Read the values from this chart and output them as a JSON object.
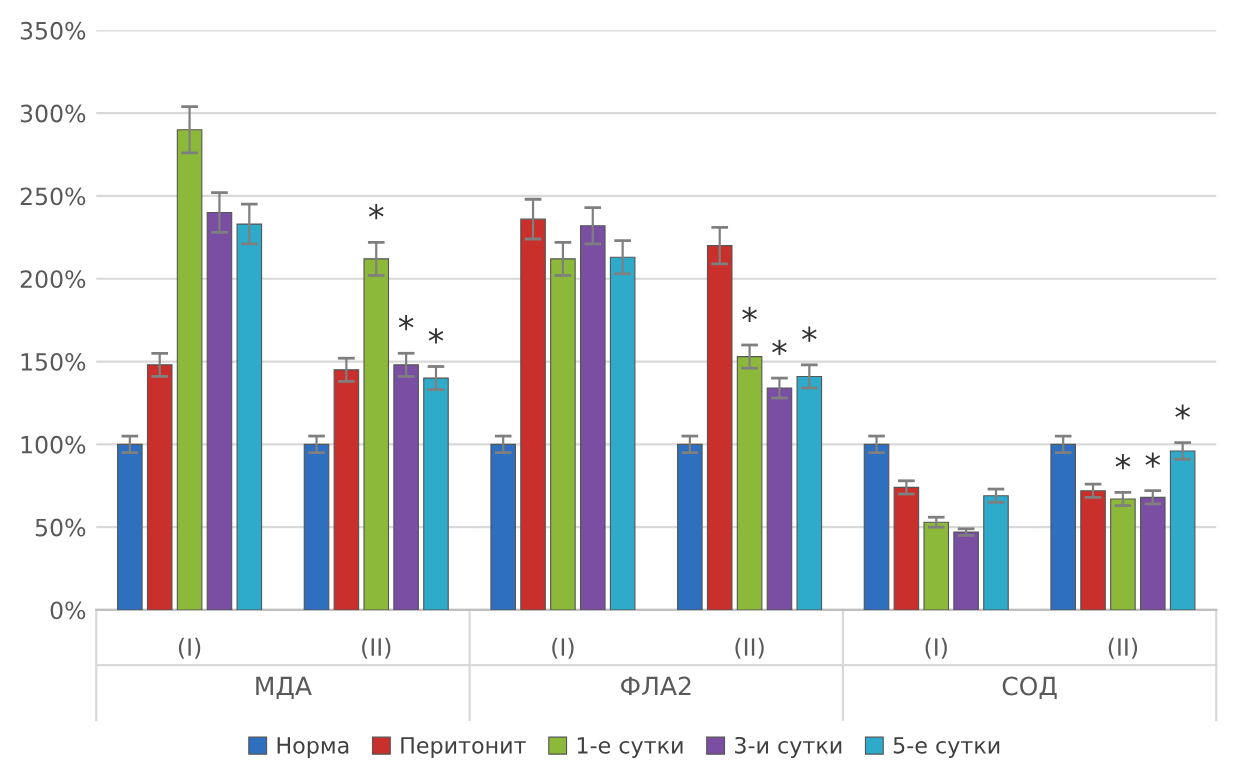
{
  "chart_data": {
    "type": "bar",
    "categories": [
      "(I)",
      "(II)",
      "(I)",
      "(II)",
      "(I)",
      "(II)"
    ],
    "series": [
      {
        "name": "Норма",
        "color": "#2e6fc0",
        "values": [
          100,
          100,
          100,
          100,
          100,
          100
        ],
        "errors": [
          5,
          5,
          5,
          5,
          5,
          5
        ]
      },
      {
        "name": "Перитонит",
        "color": "#c9302c",
        "values": [
          148,
          145,
          236,
          220,
          74,
          72
        ],
        "errors": [
          7,
          7,
          12,
          11,
          4,
          4
        ]
      },
      {
        "name": "1-е сутки",
        "color": "#8db93a",
        "values": [
          290,
          212,
          212,
          153,
          53,
          67
        ],
        "errors": [
          14,
          10,
          10,
          7,
          3,
          4
        ],
        "value_labels": [
          null,
          "*",
          null,
          "*",
          null,
          "*"
        ]
      },
      {
        "name": "3-и сутки",
        "color": "#7a4fa3",
        "values": [
          240,
          148,
          232,
          134,
          47,
          68
        ],
        "errors": [
          12,
          7,
          11,
          6,
          2,
          4
        ],
        "value_labels": [
          null,
          "*",
          null,
          "*",
          null,
          "*"
        ]
      },
      {
        "name": "5-е сутки",
        "color": "#2eaacb",
        "values": [
          233,
          140,
          213,
          141,
          69,
          96
        ],
        "errors": [
          12,
          7,
          10,
          7,
          4,
          5
        ],
        "value_labels": [
          null,
          "*",
          null,
          "*",
          null,
          "*"
        ]
      }
    ],
    "annotations": [
      "МДА",
      "ФЛА2",
      "СОД"
    ],
    "ylim": [
      0,
      350
    ],
    "yticks": [
      {
        "value": 0,
        "label": "0%"
      },
      {
        "value": 50,
        "label": "50%"
      },
      {
        "value": 100,
        "label": "100%"
      },
      {
        "value": 150,
        "label": "150%"
      },
      {
        "value": 200,
        "label": "200%"
      },
      {
        "value": 250,
        "label": "250%"
      },
      {
        "value": 300,
        "label": "300%"
      },
      {
        "value": 350,
        "label": "350%"
      }
    ],
    "grid": "y",
    "legend": "bottom"
  }
}
